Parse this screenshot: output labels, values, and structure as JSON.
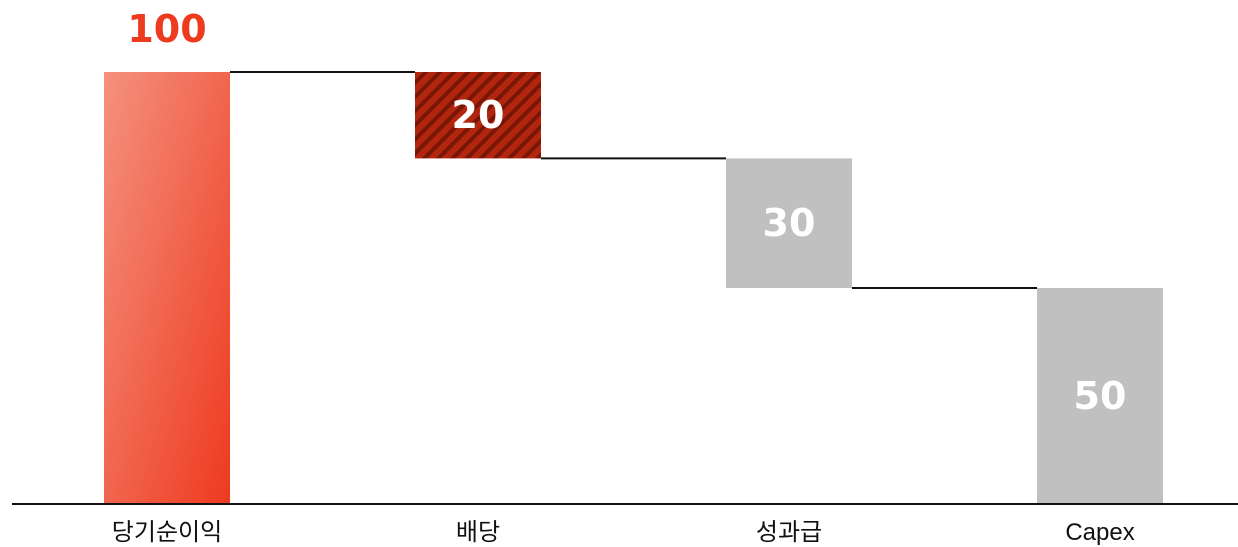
{
  "chart_data": {
    "type": "waterfall",
    "categories": [
      "당기순이익",
      "배당",
      "성과급",
      "Capex"
    ],
    "values": [
      100,
      20,
      30,
      50
    ],
    "value_labels": [
      "100",
      "20",
      "30",
      "50"
    ],
    "kinds": [
      "total",
      "decrease",
      "decrease",
      "remainder"
    ],
    "ylim": [
      0,
      100
    ],
    "title": "",
    "xlabel": "",
    "ylabel": "",
    "grid": false,
    "legend": "none",
    "colors": {
      "total_light": "#f4917e",
      "total_dark": "#ee3a1f",
      "dividend": "#b3260e",
      "dividend_stripe": "#7a1608",
      "gray": "#c0c0c0",
      "total_label": "#ee3a1f",
      "bar_label": "#ffffff",
      "connector": "#111111",
      "axis": "#111111"
    }
  }
}
